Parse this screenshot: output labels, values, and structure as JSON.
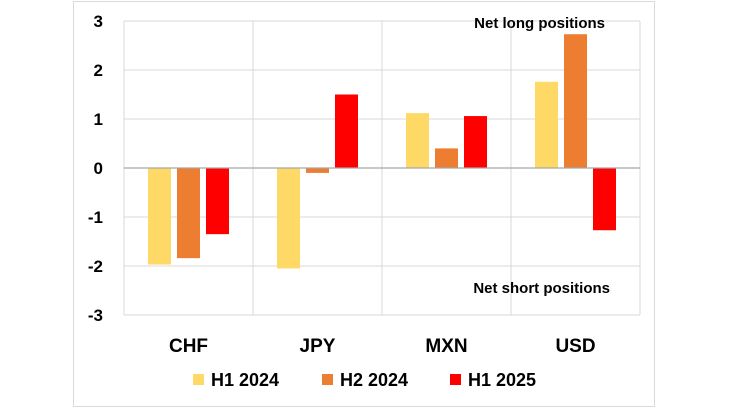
{
  "chart_data": {
    "type": "bar",
    "categories": [
      "CHF",
      "JPY",
      "MXN",
      "USD"
    ],
    "series": [
      {
        "name": "H1 2024",
        "color": "#FFD966",
        "values": [
          -1.97,
          -2.05,
          1.12,
          1.76
        ]
      },
      {
        "name": "H2 2024",
        "color": "#ED7D31",
        "values": [
          -1.84,
          -0.1,
          0.4,
          2.73
        ]
      },
      {
        "name": "H1 2025",
        "color": "#FF0000",
        "values": [
          -1.35,
          1.5,
          1.06,
          -1.27
        ]
      }
    ],
    "ylim": [
      -3,
      3
    ],
    "yticks": [
      "3",
      "2",
      "1",
      "0",
      "-1",
      "-2",
      "-3"
    ],
    "grid": true,
    "legend_position": "bottom",
    "annotations": {
      "top": "Net long positions",
      "bottom": "Net short positions"
    }
  }
}
